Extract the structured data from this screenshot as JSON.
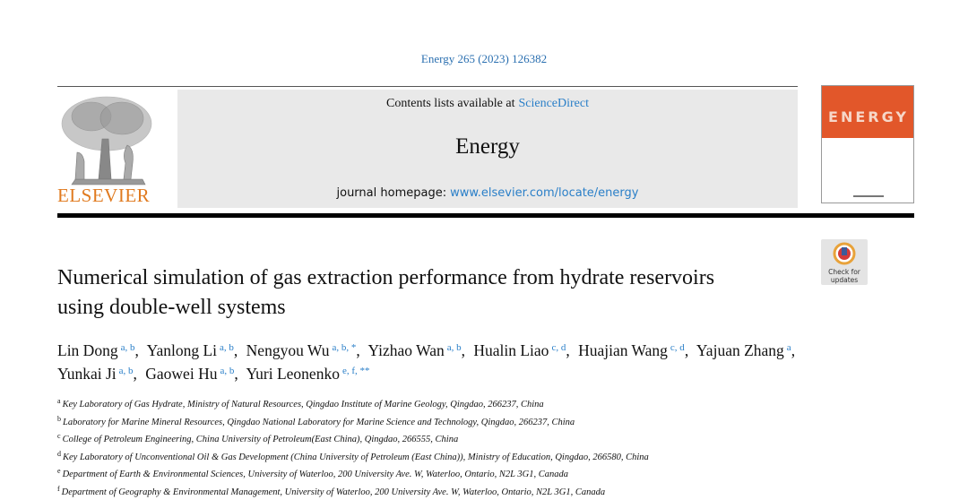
{
  "citation": "Energy 265 (2023) 126382",
  "banner": {
    "contents_prefix": "Contents lists available at",
    "contents_link": "ScienceDirect",
    "journal": "Energy",
    "homepage_prefix": "journal homepage:",
    "homepage_link": "www.elsevier.com/locate/energy"
  },
  "publisher": "ELSEVIER",
  "cover": {
    "title": "ENERGY"
  },
  "badge": {
    "line1": "Check for",
    "line2": "updates"
  },
  "title": "Numerical simulation of gas extraction performance from hydrate reservoirs using double-well systems",
  "authors": [
    {
      "name": "Lin Dong",
      "marks": "a, b"
    },
    {
      "name": "Yanlong Li",
      "marks": "a, b"
    },
    {
      "name": "Nengyou Wu",
      "marks": "a, b, *"
    },
    {
      "name": "Yizhao Wan",
      "marks": "a, b"
    },
    {
      "name": "Hualin Liao",
      "marks": "c, d"
    },
    {
      "name": "Huajian Wang",
      "marks": "c, d"
    },
    {
      "name": "Yajuan Zhang",
      "marks": "a"
    },
    {
      "name": "Yunkai Ji",
      "marks": "a, b"
    },
    {
      "name": "Gaowei Hu",
      "marks": "a, b"
    },
    {
      "name": "Yuri Leonenko",
      "marks": "e, f, **"
    }
  ],
  "affiliations": [
    {
      "mark": "a",
      "text": "Key Laboratory of Gas Hydrate, Ministry of Natural Resources, Qingdao Institute of Marine Geology, Qingdao, 266237, China"
    },
    {
      "mark": "b",
      "text": "Laboratory for Marine Mineral Resources, Qingdao National Laboratory for Marine Science and Technology, Qingdao, 266237, China"
    },
    {
      "mark": "c",
      "text": "College of Petroleum Engineering, China University of Petroleum(East China), Qingdao, 266555, China"
    },
    {
      "mark": "d",
      "text": "Key Laboratory of Unconventional Oil & Gas Development (China University of Petroleum (East China)), Ministry of Education, Qingdao, 266580, China"
    },
    {
      "mark": "e",
      "text": "Department of Earth & Environmental Sciences, University of Waterloo, 200 University Ave. W, Waterloo, Ontario, N2L 3G1, Canada"
    },
    {
      "mark": "f",
      "text": "Department of Geography & Environmental Management, University of Waterloo, 200 University Ave. W, Waterloo, Ontario, N2L 3G1, Canada"
    }
  ]
}
